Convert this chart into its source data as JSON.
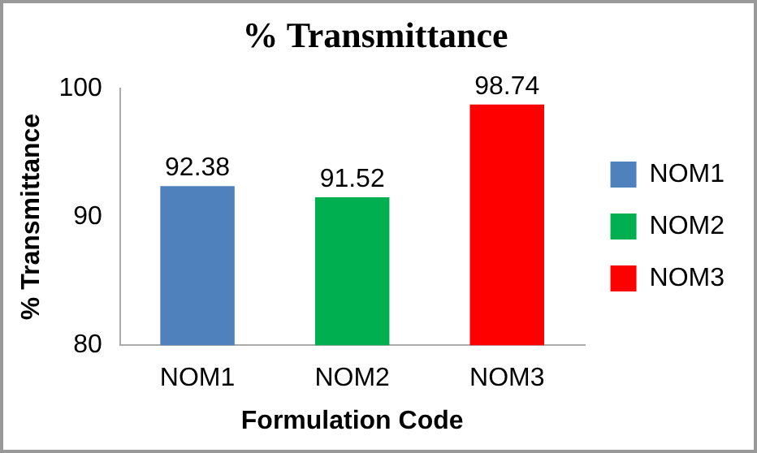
{
  "chart_data": {
    "type": "bar",
    "title": "% Transmittance",
    "xlabel": "Formulation Code",
    "ylabel": "% Transmittance",
    "categories": [
      "NOM1",
      "NOM2",
      "NOM3"
    ],
    "series": [
      {
        "name": "NOM1",
        "color": "#4f81bd",
        "values": [
          92.38,
          null,
          null
        ]
      },
      {
        "name": "NOM2",
        "color": "#00b050",
        "values": [
          null,
          91.52,
          null
        ]
      },
      {
        "name": "NOM3",
        "color": "#ff0000",
        "values": [
          null,
          null,
          98.74
        ]
      }
    ],
    "ylim": [
      80,
      100
    ],
    "yticks": [
      80,
      90,
      100
    ],
    "grid": false,
    "legend": "right",
    "data_labels": true
  }
}
